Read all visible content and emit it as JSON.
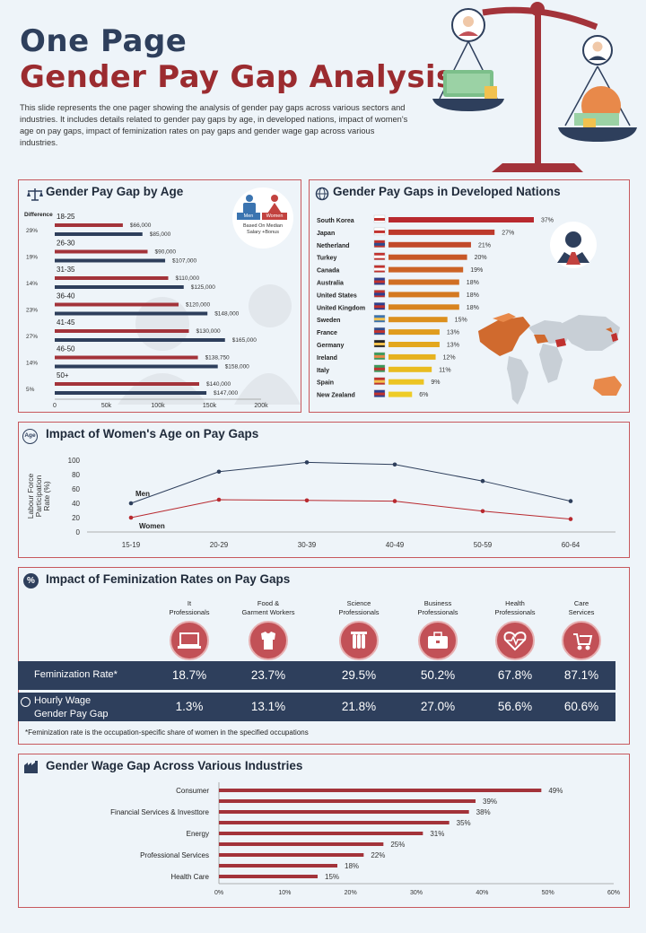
{
  "header": {
    "title_line1": "One Page",
    "title_line2": "Gender Pay Gap Analysis",
    "intro": "This slide represents the one pager showing the analysis of gender pay gaps across various sectors and industries. It includes details related to gender pay gaps by age, in developed nations, impact of women's age on pay gaps, impact of feminization rates on pay gaps and gender wage gap across various industries."
  },
  "colors": {
    "navy": "#2e3f5c",
    "red": "#9b2b2f",
    "bar_red": "#a3333a",
    "accent": "#c7585d"
  },
  "age_panel": {
    "title": "Gender Pay Gap by Age",
    "difference_label": "Difference",
    "legend_men": "Men",
    "legend_women": "Women",
    "note": "Based On Median Salary +Bonus"
  },
  "nations_panel": {
    "title": "Gender Pay Gaps in Developed Nations"
  },
  "age_impact_panel": {
    "title": "Impact of Women's Age on Pay Gaps"
  },
  "feminization_panel": {
    "title": "Impact of Feminization Rates on Pay Gaps",
    "professions": [
      {
        "line1": "It",
        "line2": "Professionals",
        "icon": "laptop-icon"
      },
      {
        "line1": "Food &",
        "line2": "Garment Workers",
        "icon": "garment-icon"
      },
      {
        "line1": "Science",
        "line2": "Professionals",
        "icon": "test-tubes-icon"
      },
      {
        "line1": "Business",
        "line2": "Professionals",
        "icon": "briefcase-icon"
      },
      {
        "line1": "Health",
        "line2": "Professionals",
        "icon": "heartbeat-icon"
      },
      {
        "line1": "Care",
        "line2": "Services",
        "icon": "stroller-icon"
      }
    ],
    "row1_label": "Feminization Rate*",
    "row1_values": [
      "18.7%",
      "23.7%",
      "29.5%",
      "50.2%",
      "67.8%",
      "87.1%"
    ],
    "row2_label_line1": "Hourly Wage",
    "row2_label_line2": "Gender Pay Gap",
    "row2_values": [
      "1.3%",
      "13.1%",
      "21.8%",
      "27.0%",
      "56.6%",
      "60.6%"
    ],
    "footnote": "*Feminization rate is the occupation-specific share of women in the specified occupations"
  },
  "industries_panel": {
    "title": "Gender Wage Gap Across Various Industries"
  },
  "chart_data": [
    {
      "id": "age",
      "type": "bar",
      "title": "Gender Pay Gap by Age",
      "categories": [
        "18-25",
        "26-30",
        "31-35",
        "36-40",
        "41-45",
        "46-50",
        "50+"
      ],
      "difference": [
        "29%",
        "19%",
        "14%",
        "23%",
        "27%",
        "14%",
        "5%"
      ],
      "series": [
        {
          "name": "Women",
          "values": [
            66000,
            90000,
            110000,
            120000,
            130000,
            138750,
            140000
          ],
          "labels": [
            "$66,000",
            "$90,000",
            "$110,000",
            "$120,000",
            "$130,000",
            "$138,750",
            "$140,000"
          ]
        },
        {
          "name": "Men",
          "values": [
            85000,
            107000,
            125000,
            148000,
            165000,
            158000,
            147000
          ],
          "labels": [
            "$85,000",
            "$107,000",
            "$125,000",
            "$148,000",
            "$165,000",
            "$158,000",
            "$147,000"
          ]
        }
      ],
      "xticks": [
        "0",
        "50k",
        "100k",
        "150k",
        "200k"
      ],
      "xlim": [
        0,
        200000
      ]
    },
    {
      "id": "nations",
      "type": "bar",
      "title": "Gender Pay Gaps in Developed Nations",
      "categories": [
        "South Korea",
        "Japan",
        "Netherland",
        "Turkey",
        "Canada",
        "Australia",
        "United States",
        "United Kingdom",
        "Sweden",
        "France",
        "Germany",
        "Ireland",
        "Italy",
        "Spain",
        "New Zealand"
      ],
      "values": [
        37,
        27,
        21,
        20,
        19,
        18,
        18,
        18,
        15,
        13,
        13,
        12,
        11,
        9,
        6
      ],
      "labels": [
        "37%",
        "27%",
        "21%",
        "20%",
        "19%",
        "18%",
        "18%",
        "18%",
        "15%",
        "13%",
        "13%",
        "12%",
        "11%",
        "9%",
        "6%"
      ],
      "xlim": [
        0,
        37
      ]
    },
    {
      "id": "age_impact",
      "type": "line",
      "title": "Impact of Women's Age on Pay Gaps",
      "x": [
        "15-19",
        "20-29",
        "30-39",
        "40-49",
        "50-59",
        "60-64"
      ],
      "series": [
        {
          "name": "Men",
          "values": [
            40,
            84,
            97,
            94,
            71,
            43
          ]
        },
        {
          "name": "Women",
          "values": [
            20,
            45,
            44,
            43,
            29,
            18
          ]
        }
      ],
      "ylabel_lines": [
        "Labour Force",
        "Participation",
        "Rate (%)"
      ],
      "yticks": [
        "0",
        "20",
        "40",
        "60",
        "80",
        "100"
      ],
      "ylim": [
        0,
        100
      ]
    },
    {
      "id": "industries",
      "type": "bar",
      "title": "Gender Wage Gap Across Various Industries",
      "categories": [
        "Consumer",
        "",
        "Financial Services & Investtore",
        "",
        "Energy",
        "",
        "Professional Services",
        "",
        "Health Care"
      ],
      "values": [
        49,
        39,
        38,
        35,
        31,
        25,
        22,
        18,
        15
      ],
      "labels": [
        "49%",
        "39%",
        "38%",
        "35%",
        "31%",
        "25%",
        "22%",
        "18%",
        "15%"
      ],
      "xticks": [
        "0%",
        "10%",
        "20%",
        "30%",
        "40%",
        "50%",
        "60%"
      ],
      "xlim": [
        0,
        60
      ]
    }
  ]
}
